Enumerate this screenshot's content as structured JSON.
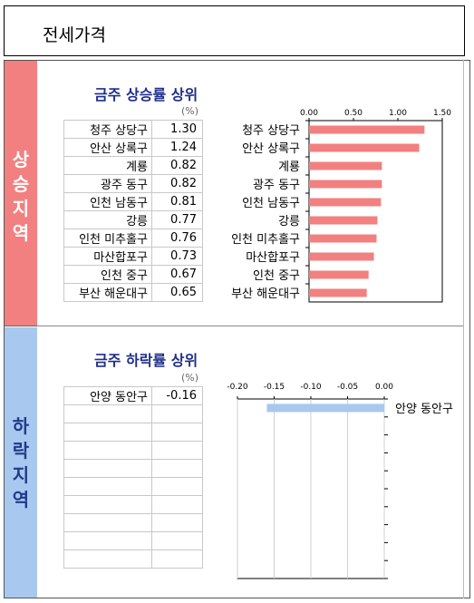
{
  "page_title": "전세가격",
  "bands": {
    "rise": "상승지역",
    "fall": "하락지역"
  },
  "rise": {
    "title": "금주 상승률 상위",
    "unit": "(%)",
    "rows": [
      {
        "region": "청주 상당구",
        "value": "1.30"
      },
      {
        "region": "안산 상록구",
        "value": "1.24"
      },
      {
        "region": "계룡",
        "value": "0.82"
      },
      {
        "region": "광주 동구",
        "value": "0.82"
      },
      {
        "region": "인천 남동구",
        "value": "0.81"
      },
      {
        "region": "강릉",
        "value": "0.77"
      },
      {
        "region": "인천 미추홀구",
        "value": "0.76"
      },
      {
        "region": "마산합포구",
        "value": "0.73"
      },
      {
        "region": "인천 중구",
        "value": "0.67"
      },
      {
        "region": "부산 해운대구",
        "value": "0.65"
      }
    ]
  },
  "fall": {
    "title": "금주 하락률 상위",
    "unit": "(%)",
    "rows": [
      {
        "region": "안양 동안구",
        "value": "-0.16"
      }
    ],
    "empty_rows": 9
  },
  "chart_data": [
    {
      "type": "bar",
      "orientation": "horizontal",
      "categories": [
        "청주 상당구",
        "안산 상록구",
        "계룡",
        "광주 동구",
        "인천 남동구",
        "강릉",
        "인천 미추홀구",
        "마산합포구",
        "인천 중구",
        "부산 해운대구"
      ],
      "values": [
        1.3,
        1.24,
        0.82,
        0.82,
        0.81,
        0.77,
        0.76,
        0.73,
        0.67,
        0.65
      ],
      "xlim": [
        0,
        1.5
      ],
      "ticks": [
        "0.00",
        "0.50",
        "1.00",
        "1.50"
      ],
      "tick_values": [
        0,
        0.5,
        1.0,
        1.5
      ],
      "axis_position": "top",
      "bar_color": "#f28080"
    },
    {
      "type": "bar",
      "orientation": "horizontal",
      "categories": [
        "안양 동안구"
      ],
      "values": [
        -0.16
      ],
      "xlim": [
        -0.2,
        0
      ],
      "ticks": [
        "-0.20",
        "-0.15",
        "-0.10",
        "-0.05",
        "0.00"
      ],
      "tick_values": [
        -0.2,
        -0.15,
        -0.1,
        -0.05,
        0
      ],
      "axis_position": "top",
      "slots": 10,
      "bar_color": "#a8c8ef"
    }
  ]
}
